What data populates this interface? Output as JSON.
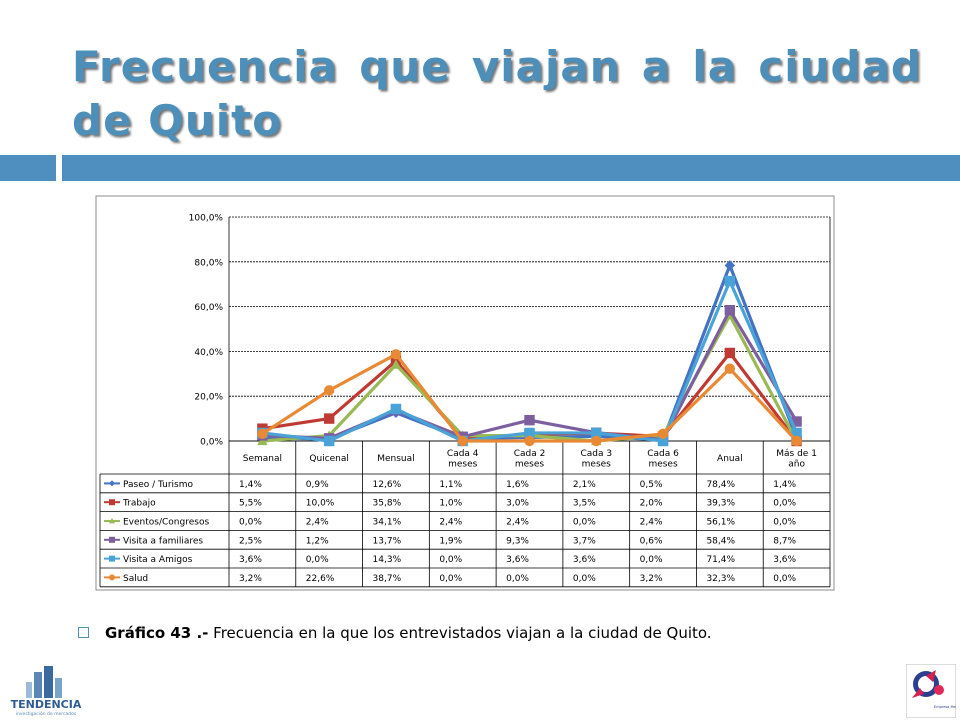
{
  "title": "Frecuencia que viajan a la ciudad de Quito",
  "caption": {
    "label": "Gráfico 43 .-",
    "text": "Frecuencia en la que los entrevistados viajan a la ciudad de Quito."
  },
  "logos": {
    "left_brand": "TENDENCIA",
    "left_tagline": "investigación de mercados",
    "right_brand": "Empresa Metropolitana Quito Turismo"
  },
  "colors": {
    "title": "#4e8fb9",
    "bars": "#4f8fc0",
    "grid": "#000000"
  },
  "chart_data": {
    "type": "line",
    "ylim": [
      0,
      100
    ],
    "yticks": [
      0,
      20,
      40,
      60,
      80,
      100
    ],
    "ytick_labels": [
      "0,0%",
      "20,0%",
      "40,0%",
      "60,0%",
      "80,0%",
      "100,0%"
    ],
    "grid": true,
    "legend": "table-below",
    "categories": [
      [
        "Semanal"
      ],
      [
        "Quicenal"
      ],
      [
        "Mensual"
      ],
      [
        "Cada 4",
        "meses"
      ],
      [
        "Cada 2",
        "meses"
      ],
      [
        "Cada 3",
        "meses"
      ],
      [
        "Cada 6",
        "meses"
      ],
      [
        "Anual"
      ],
      [
        "Más de 1",
        "año"
      ]
    ],
    "series": [
      {
        "name": "Paseo / Turismo",
        "color": "#4472c4",
        "marker": "diamond",
        "values": [
          1.4,
          0.9,
          12.6,
          1.1,
          1.6,
          2.1,
          0.5,
          78.4,
          1.4
        ],
        "labels": [
          "1,4%",
          "0,9%",
          "12,6%",
          "1,1%",
          "1,6%",
          "2,1%",
          "0,5%",
          "78,4%",
          "1,4%"
        ]
      },
      {
        "name": "Trabajo",
        "color": "#be3a32",
        "marker": "square",
        "values": [
          5.5,
          10.0,
          35.8,
          1.0,
          3.0,
          3.5,
          2.0,
          39.3,
          0.0
        ],
        "labels": [
          "5,5%",
          "10,0%",
          "35,8%",
          "1,0%",
          "3,0%",
          "3,5%",
          "2,0%",
          "39,3%",
          "0,0%"
        ]
      },
      {
        "name": "Eventos/Congresos",
        "color": "#98b954",
        "marker": "triangle",
        "values": [
          0.0,
          2.4,
          34.1,
          2.4,
          2.4,
          0.0,
          2.4,
          56.1,
          0.0
        ],
        "labels": [
          "0,0%",
          "2,4%",
          "34,1%",
          "2,4%",
          "2,4%",
          "0,0%",
          "2,4%",
          "56,1%",
          "0,0%"
        ]
      },
      {
        "name": "Visita a familiares",
        "color": "#7d5fa0",
        "marker": "square",
        "values": [
          2.5,
          1.2,
          13.7,
          1.9,
          9.3,
          3.7,
          0.6,
          58.4,
          8.7
        ],
        "labels": [
          "2,5%",
          "1,2%",
          "13,7%",
          "1,9%",
          "9,3%",
          "3,7%",
          "0,6%",
          "58,4%",
          "8,7%"
        ]
      },
      {
        "name": "Visita a Amigos",
        "color": "#4aa3d6",
        "marker": "square",
        "values": [
          3.6,
          0.0,
          14.3,
          0.0,
          3.6,
          3.6,
          0.0,
          71.4,
          3.6
        ],
        "labels": [
          "3,6%",
          "0,0%",
          "14,3%",
          "0,0%",
          "3,6%",
          "3,6%",
          "0,0%",
          "71,4%",
          "3,6%"
        ]
      },
      {
        "name": "Salud",
        "color": "#e88a35",
        "marker": "circle",
        "values": [
          3.2,
          22.6,
          38.7,
          0.0,
          0.0,
          0.0,
          3.2,
          32.3,
          0.0
        ],
        "labels": [
          "3,2%",
          "22,6%",
          "38,7%",
          "0,0%",
          "0,0%",
          "0,0%",
          "3,2%",
          "32,3%",
          "0,0%"
        ]
      }
    ]
  }
}
